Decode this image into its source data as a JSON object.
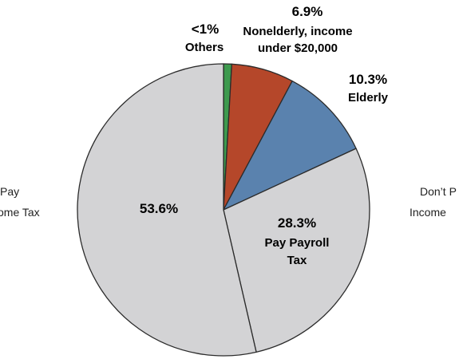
{
  "chart_data": {
    "type": "pie",
    "title": "",
    "slices": [
      {
        "name": "Others",
        "percent_label": "<1%",
        "value": 0.9,
        "color": "#3d9a4e"
      },
      {
        "name": "Nonelderly, income under $20,000",
        "name_lines": [
          "Nonelderly, income",
          "under $20,000"
        ],
        "percent_label": "6.9%",
        "value": 6.9,
        "color": "#b5472a"
      },
      {
        "name": "Elderly",
        "percent_label": "10.3%",
        "value": 10.3,
        "color": "#5a82ae"
      },
      {
        "name": "Pay Payroll Tax",
        "name_lines": [
          "Pay Payroll",
          "Tax"
        ],
        "percent_label": "28.3%",
        "value": 28.3,
        "color": "#d3d3d5"
      },
      {
        "name": "",
        "percent_label": "53.6%",
        "value": 53.6,
        "color": "#d3d3d5"
      }
    ],
    "side_labels": {
      "left": [
        "Pay",
        "ome Tax"
      ],
      "right": [
        "Don’t P",
        "Income"
      ]
    },
    "outline_color": "#2b2b2b"
  }
}
